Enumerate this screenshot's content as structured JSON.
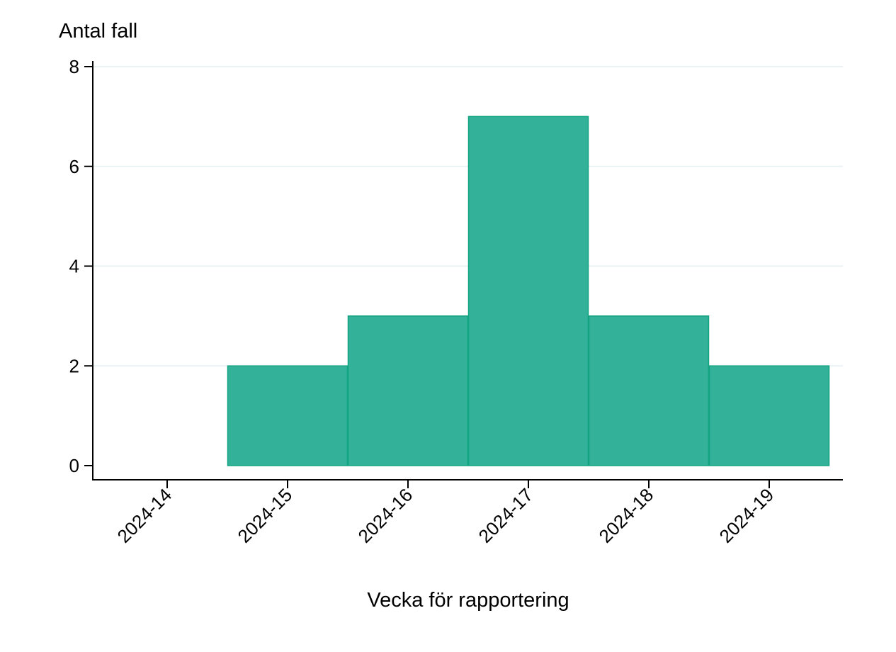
{
  "chart_data": {
    "type": "bar",
    "title": "",
    "xlabel": "Vecka för rapportering",
    "ylabel": "Antal fall",
    "categories": [
      "2024-14",
      "2024-15",
      "2024-16",
      "2024-17",
      "2024-18",
      "2024-19"
    ],
    "values": [
      0,
      2,
      3,
      7,
      3,
      2
    ],
    "yticks": [
      0,
      2,
      4,
      6,
      8
    ],
    "ylim": [
      0,
      8
    ],
    "grid": true,
    "legend": null,
    "bar_color": "#33b199",
    "bar_edge_color": "#13a581",
    "grid_color": "#eaf2f3"
  }
}
